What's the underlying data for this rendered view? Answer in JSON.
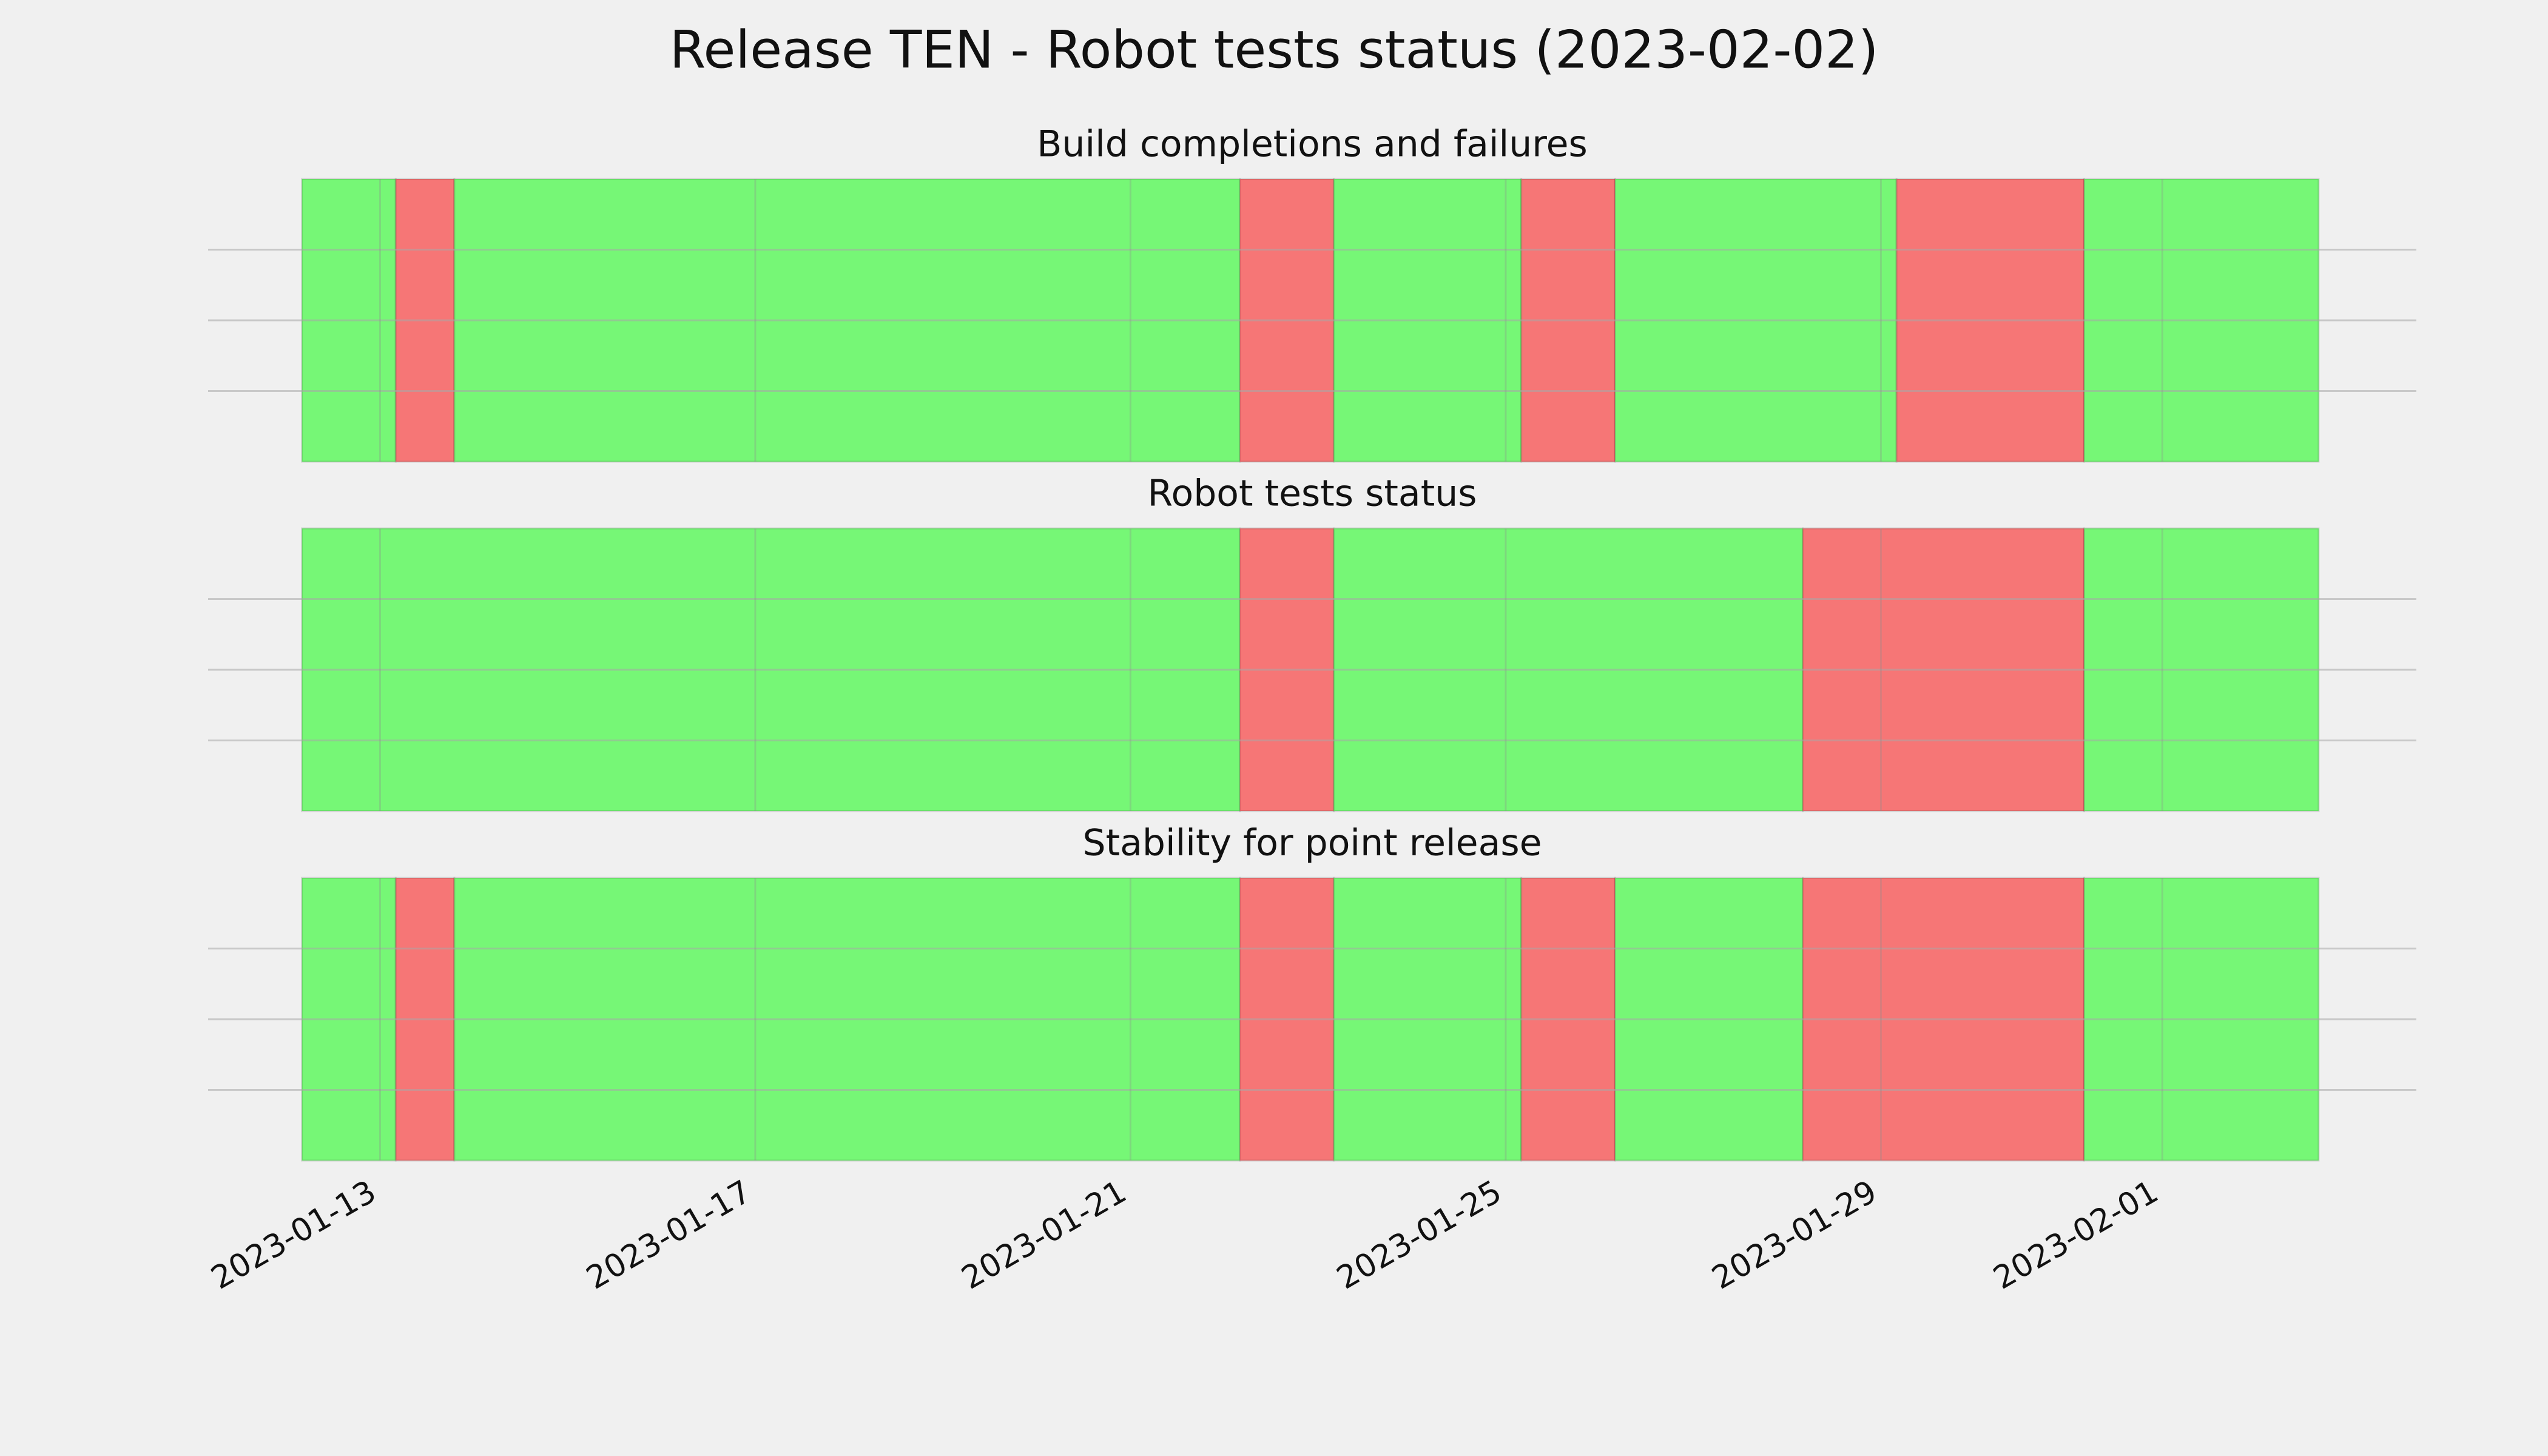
{
  "title": "Release TEN - Robot tests status (2023-02-02)",
  "chart_data": [
    {
      "type": "timeline",
      "title": "Build completions and failures",
      "starts": [
        "2023-01-12T04:00",
        "2023-01-13T04:00",
        "2023-01-13T19:00",
        "2023-01-22T04:00",
        "2023-01-23T04:00",
        "2023-01-25T04:00",
        "2023-01-26T04:00",
        "2023-01-29T04:00",
        "2023-01-31T04:00"
      ],
      "ends": [
        "2023-01-13T04:00",
        "2023-01-13T19:00",
        "2023-01-22T04:00",
        "2023-01-23T04:00",
        "2023-01-25T04:00",
        "2023-01-26T04:00",
        "2023-01-29T04:00",
        "2023-01-31T04:00",
        "2023-02-02T16:00"
      ],
      "colors": [
        "#76f776",
        "#f67676",
        "#76f776",
        "#f67676",
        "#76f776",
        "#f67676",
        "#76f776",
        "#f67676",
        "#76f776"
      ],
      "xlim": [
        "2023-01-11T04:00",
        "2023-02-03T17:00"
      ],
      "xticks": [
        "2023-01-13",
        "2023-01-17",
        "2023-01-21",
        "2023-01-25",
        "2023-01-29",
        "2023-02-01"
      ],
      "ylim": [
        0,
        1
      ],
      "yticks": [
        0.25,
        0.5,
        0.75
      ],
      "grid": true
    },
    {
      "type": "timeline",
      "title": "Robot tests status",
      "starts": [
        "2023-01-12T04:00",
        "2023-01-22T04:00",
        "2023-01-23T04:00",
        "2023-01-28T04:00",
        "2023-01-31T04:00"
      ],
      "ends": [
        "2023-01-22T04:00",
        "2023-01-23T04:00",
        "2023-01-28T04:00",
        "2023-01-31T04:00",
        "2023-02-02T16:00"
      ],
      "colors": [
        "#76f776",
        "#f67676",
        "#76f776",
        "#f67676",
        "#76f776"
      ],
      "xlim": [
        "2023-01-11T04:00",
        "2023-02-03T17:00"
      ],
      "xticks": [
        "2023-01-13",
        "2023-01-17",
        "2023-01-21",
        "2023-01-25",
        "2023-01-29",
        "2023-02-01"
      ],
      "ylim": [
        0,
        1
      ],
      "yticks": [
        0.25,
        0.5,
        0.75
      ],
      "grid": true
    },
    {
      "type": "timeline",
      "title": "Stability for point release",
      "starts": [
        "2023-01-12T04:00",
        "2023-01-13T04:00",
        "2023-01-13T19:00",
        "2023-01-22T04:00",
        "2023-01-23T04:00",
        "2023-01-25T04:00",
        "2023-01-26T04:00",
        "2023-01-28T04:00",
        "2023-01-31T04:00"
      ],
      "ends": [
        "2023-01-13T04:00",
        "2023-01-13T19:00",
        "2023-01-22T04:00",
        "2023-01-23T04:00",
        "2023-01-25T04:00",
        "2023-01-26T04:00",
        "2023-01-28T04:00",
        "2023-01-31T04:00",
        "2023-02-02T16:00"
      ],
      "colors": [
        "#76f776",
        "#f67676",
        "#76f776",
        "#f67676",
        "#76f776",
        "#f67676",
        "#76f776",
        "#f67676",
        "#76f776"
      ],
      "xlim": [
        "2023-01-11T04:00",
        "2023-02-03T17:00"
      ],
      "xticks": [
        "2023-01-13",
        "2023-01-17",
        "2023-01-21",
        "2023-01-25",
        "2023-01-29",
        "2023-02-01"
      ],
      "ylim": [
        0,
        1
      ],
      "yticks": [
        0.25,
        0.5,
        0.75
      ],
      "grid": true
    }
  ]
}
